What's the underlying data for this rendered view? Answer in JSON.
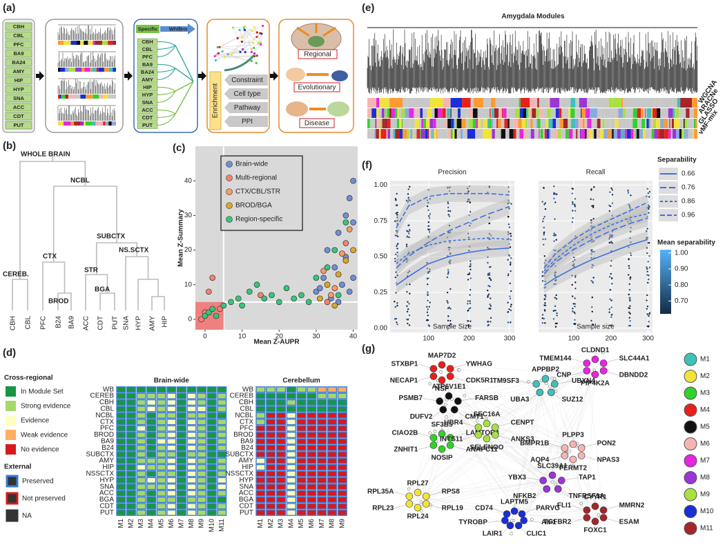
{
  "panel_a": {
    "label": "(a)",
    "regions": [
      "CBH",
      "CBL",
      "PFC",
      "BA9",
      "BA24",
      "AMY",
      "HIP",
      "HYP",
      "SNA",
      "ACC",
      "CDT",
      "PUT"
    ],
    "specific": "Specific",
    "whole_brain": "WhlBrn",
    "enrichment": "Enrichment",
    "enrichment_types": [
      "Constraint",
      "Cell type",
      "Pathway",
      "PPI"
    ],
    "outcomes": [
      "Regional",
      "Evolutionary",
      "Disease"
    ]
  },
  "panel_b": {
    "label": "(b)",
    "nodes": [
      "WHOLE BRAIN",
      "NCBL",
      "SUBCTX",
      "CTX",
      "NS.SCTX",
      "CEREB.",
      "STR",
      "BROD",
      "BGA"
    ],
    "leaves": [
      "CBH",
      "CBL",
      "PFC",
      "B24",
      "BA9",
      "ACC",
      "CDT",
      "PUT",
      "SNA",
      "HYP",
      "AMY",
      "HIP"
    ]
  },
  "chart_data": [
    {
      "type": "scatter",
      "panel": "(c)",
      "x_label": "Mean Z-AUPR",
      "y_label": "Mean Z-Summary",
      "xlim": [
        -2.6,
        41.2
      ],
      "ylim": [
        -3,
        50
      ],
      "xticks": [
        0,
        10,
        20,
        30,
        40
      ],
      "yticks": [
        0,
        10,
        20,
        30,
        40
      ],
      "x_threshold": 5,
      "y_threshold": 5,
      "series": [
        {
          "name": "Brain-wide",
          "color": "#6f8fd6",
          "x": [
            30,
            32,
            33,
            34,
            35,
            36,
            37,
            38,
            38,
            39,
            40,
            40,
            40,
            39,
            36,
            31
          ],
          "values": [
            8,
            12,
            20,
            6,
            15,
            25,
            10,
            30,
            18,
            35,
            40,
            28,
            12,
            8,
            5,
            9
          ]
        },
        {
          "name": "Multi-regional",
          "color": "#f4826f",
          "x": [
            0,
            1,
            2,
            -1,
            4,
            15,
            33,
            38
          ],
          "values": [
            2,
            8,
            12,
            0,
            3,
            7,
            5,
            22
          ]
        },
        {
          "name": "CTX/CBL/STR",
          "color": "#fb9a60",
          "x": [
            32,
            35,
            37,
            39,
            34
          ],
          "values": [
            14,
            9,
            19,
            26,
            7
          ]
        },
        {
          "name": "BROD/BGA",
          "color": "#e0a526",
          "x": [
            33,
            36,
            38,
            40,
            31,
            35
          ],
          "values": [
            10,
            13,
            17,
            20,
            6,
            4
          ]
        },
        {
          "name": "Region-specific",
          "color": "#34c77b",
          "x": [
            0,
            1,
            2,
            3,
            5,
            7,
            9,
            10,
            12,
            14,
            16,
            18,
            20,
            22,
            24,
            26,
            28,
            30,
            33,
            35,
            38,
            36
          ],
          "values": [
            1,
            2,
            3,
            1,
            4,
            5,
            6,
            4,
            8,
            10,
            6,
            7,
            5,
            9,
            6,
            7,
            5,
            12,
            15,
            20,
            28,
            7
          ]
        }
      ]
    },
    {
      "type": "line",
      "panel": "(f)",
      "x": [
        20,
        50,
        100,
        150,
        200,
        250,
        300
      ],
      "xlim": [
        5,
        312
      ],
      "ylim": [
        -0.03,
        1.03
      ],
      "xticks": [
        100,
        200,
        300
      ],
      "yticks": [
        {
          "value": 0,
          "label": "0.00"
        },
        {
          "value": 0.25,
          "label": "0.25"
        },
        {
          "value": 0.5,
          "label": "0.50"
        },
        {
          "value": 0.75,
          "label": "0.75"
        },
        {
          "value": 1,
          "label": "1.00"
        }
      ],
      "color": "#3d6fe0",
      "legend_title": "Separability",
      "facets": [
        {
          "title": "Precision",
          "x_label": "Sample Size",
          "series": [
            {
              "name": "0.66",
              "values": [
                0.3,
                0.36,
                0.45,
                0.5,
                0.53,
                0.55,
                0.56
              ]
            },
            {
              "name": "0.76",
              "values": [
                0.42,
                0.5,
                0.6,
                0.68,
                0.74,
                0.8,
                0.85
              ]
            },
            {
              "name": "0.86",
              "values": [
                0.45,
                0.52,
                0.58,
                0.61,
                0.62,
                0.63,
                0.62
              ]
            },
            {
              "name": "0.96",
              "values": [
                0.7,
                0.85,
                0.92,
                0.94,
                0.94,
                0.94,
                0.93
              ]
            }
          ]
        },
        {
          "title": "Recall",
          "x_label": "Sample size",
          "series": [
            {
              "name": "0.66",
              "values": [
                0.3,
                0.35,
                0.42,
                0.48,
                0.53,
                0.58,
                0.62
              ]
            },
            {
              "name": "0.76",
              "values": [
                0.38,
                0.46,
                0.55,
                0.62,
                0.68,
                0.73,
                0.77
              ]
            },
            {
              "name": "0.86",
              "values": [
                0.4,
                0.48,
                0.58,
                0.66,
                0.72,
                0.77,
                0.8
              ]
            },
            {
              "name": "0.96",
              "values": [
                0.42,
                0.52,
                0.62,
                0.7,
                0.76,
                0.82,
                0.88
              ]
            }
          ]
        }
      ],
      "colorbar_title": "Mean separability",
      "colorbar_lim": [
        0.62,
        1.02
      ],
      "colorbar_ticks": [
        {
          "value": 1,
          "label": "1.00"
        },
        {
          "value": 0.9,
          "label": "0.90"
        },
        {
          "value": 0.8,
          "label": "0.80"
        },
        {
          "value": 0.7,
          "label": "0.70"
        }
      ]
    }
  ],
  "panel_d": {
    "label": "(d)",
    "cross_regional_title": "Cross-regional",
    "levels": [
      {
        "name": "In Module Set",
        "color": "#1a9641"
      },
      {
        "name": "Strong evidence",
        "color": "#a6d96a"
      },
      {
        "name": "Evidence",
        "color": "#ffffbf"
      },
      {
        "name": "Weak evidence",
        "color": "#fdae61"
      },
      {
        "name": "No evidence",
        "color": "#d7191c"
      }
    ],
    "external_title": "External",
    "external": [
      {
        "name": "Preserved",
        "color": "#3b7dd8"
      },
      {
        "name": "Not preserved",
        "color": "#d7191c"
      },
      {
        "name": "NA",
        "color": "#333333"
      }
    ],
    "heatmaps": [
      {
        "title": "Brain-wide",
        "rows": [
          "WB",
          "CEREB",
          "CBH",
          "CBL",
          "NCBL",
          "CTX",
          "PFC",
          "BROD",
          "BA9",
          "B24",
          "SUBCTX",
          "AMY",
          "HIP",
          "NSSCTX",
          "HYP",
          "SNA",
          "ACC",
          "BGA",
          "CDT",
          "PUT"
        ],
        "columns": [
          "M1",
          "M2",
          "M3",
          "M4",
          "M5",
          "M6",
          "M7",
          "M8",
          "M9",
          "M10",
          "M11"
        ],
        "cells": [
          [
            0,
            0,
            0,
            0,
            0,
            0,
            0,
            0,
            0,
            0,
            0
          ],
          [
            0,
            0,
            1,
            1,
            1,
            2,
            0,
            2,
            1,
            0,
            1
          ],
          [
            0,
            0,
            1,
            2,
            1,
            2,
            0,
            2,
            1,
            0,
            1
          ],
          [
            0,
            0,
            1,
            2,
            1,
            2,
            0,
            2,
            2,
            0,
            1
          ],
          [
            0,
            0,
            1,
            0,
            1,
            1,
            0,
            1,
            1,
            0,
            0
          ],
          [
            0,
            0,
            1,
            0,
            1,
            2,
            0,
            2,
            1,
            0,
            1
          ],
          [
            0,
            0,
            2,
            0,
            1,
            2,
            0,
            2,
            1,
            0,
            1
          ],
          [
            0,
            0,
            1,
            0,
            1,
            2,
            0,
            2,
            1,
            0,
            1
          ],
          [
            0,
            0,
            1,
            0,
            2,
            2,
            0,
            2,
            1,
            0,
            1
          ],
          [
            0,
            0,
            1,
            0,
            1,
            2,
            0,
            2,
            1,
            0,
            1
          ],
          [
            0,
            0,
            1,
            0,
            1,
            1,
            0,
            1,
            1,
            0,
            0
          ],
          [
            0,
            0,
            1,
            1,
            1,
            2,
            0,
            2,
            1,
            0,
            1
          ],
          [
            0,
            0,
            2,
            1,
            1,
            2,
            0,
            2,
            1,
            0,
            1
          ],
          [
            0,
            0,
            1,
            0,
            1,
            1,
            0,
            2,
            1,
            0,
            1
          ],
          [
            0,
            0,
            1,
            2,
            1,
            2,
            0,
            2,
            1,
            0,
            2
          ],
          [
            0,
            0,
            1,
            1,
            1,
            2,
            0,
            2,
            1,
            0,
            2
          ],
          [
            0,
            0,
            1,
            0,
            1,
            2,
            0,
            2,
            1,
            0,
            1
          ],
          [
            0,
            0,
            1,
            0,
            1,
            1,
            0,
            1,
            1,
            0,
            0
          ],
          [
            0,
            0,
            1,
            0,
            1,
            2,
            0,
            2,
            1,
            0,
            1
          ],
          [
            0,
            0,
            1,
            0,
            1,
            2,
            0,
            2,
            1,
            0,
            1
          ]
        ]
      },
      {
        "title": "Cerebellum",
        "rows": [
          "WB",
          "CEREB",
          "CBH",
          "CBL",
          "NCBL",
          "CTX",
          "PFC",
          "BROD",
          "BA9",
          "B24",
          "SUBCTX",
          "AMY",
          "HIP",
          "NSSCTX",
          "HYP",
          "SNA",
          "ACC",
          "BGA",
          "CDT",
          "PUT"
        ],
        "columns": [
          "M1",
          "M2",
          "M3",
          "M4",
          "M5",
          "M6",
          "M7",
          "M8",
          "M9"
        ],
        "cells": [
          [
            1,
            1,
            1,
            0,
            1,
            1,
            3,
            3,
            3
          ],
          [
            0,
            0,
            0,
            0,
            0,
            0,
            1,
            1,
            1
          ],
          [
            0,
            0,
            0,
            1,
            0,
            0,
            0,
            0,
            0
          ],
          [
            0,
            0,
            0,
            0,
            0,
            0,
            0,
            0,
            0
          ],
          [
            1,
            4,
            4,
            2,
            4,
            4,
            4,
            4,
            4
          ],
          [
            1,
            4,
            4,
            2,
            4,
            4,
            4,
            4,
            4
          ],
          [
            4,
            4,
            4,
            2,
            4,
            4,
            4,
            4,
            4
          ],
          [
            4,
            4,
            4,
            2,
            4,
            4,
            4,
            4,
            4
          ],
          [
            4,
            4,
            4,
            2,
            4,
            4,
            4,
            4,
            4
          ],
          [
            4,
            4,
            4,
            2,
            4,
            4,
            4,
            4,
            4
          ],
          [
            4,
            4,
            4,
            2,
            4,
            4,
            4,
            4,
            4
          ],
          [
            2,
            4,
            4,
            2,
            4,
            4,
            4,
            4,
            4
          ],
          [
            2,
            4,
            4,
            2,
            4,
            4,
            4,
            4,
            4
          ],
          [
            4,
            4,
            4,
            2,
            4,
            4,
            4,
            4,
            4
          ],
          [
            4,
            4,
            4,
            2,
            4,
            4,
            4,
            4,
            4
          ],
          [
            4,
            4,
            4,
            2,
            4,
            4,
            4,
            4,
            4
          ],
          [
            4,
            4,
            4,
            2,
            4,
            4,
            4,
            4,
            4
          ],
          [
            4,
            4,
            4,
            2,
            4,
            4,
            4,
            4,
            4
          ],
          [
            4,
            4,
            4,
            2,
            4,
            4,
            4,
            4,
            4
          ],
          [
            4,
            4,
            4,
            2,
            4,
            4,
            4,
            4,
            4
          ]
        ]
      }
    ]
  },
  "panel_e": {
    "label": "(e)",
    "title": "Amygdala Modules",
    "tracks": [
      "WGCNA",
      "ARACNe",
      "GLASSO",
      "vMF-mix"
    ]
  },
  "panel_g": {
    "label": "(g)",
    "modules": [
      {
        "name": "M1",
        "color": "#40c0b8",
        "genes": [
          "APPBP2",
          "UBXN4",
          "SUZ12",
          "UBA3",
          "TM9SF3"
        ]
      },
      {
        "name": "M2",
        "color": "#f2e33a",
        "genes": [
          "RPL27",
          "RPS8",
          "RPL19",
          "RPL24",
          "RPL23",
          "RPL35A"
        ]
      },
      {
        "name": "M3",
        "color": "#33d12b",
        "genes": [
          "SF3B5",
          "LAMTOR4",
          "ANAPC11",
          "NOSIP",
          "ZNHIT1",
          "CIAO2B"
        ]
      },
      {
        "name": "M4",
        "color": "#e8201c",
        "genes": [
          "MAP7D2",
          "YWHAG",
          "CDK5R1",
          "NSF",
          "NECAP1",
          "STXBP1"
        ]
      },
      {
        "name": "M5",
        "color": "#111111",
        "genes": [
          "ATP6V1E1",
          "FARSB",
          "CMT1",
          "DUFV2",
          "PSMB7"
        ]
      },
      {
        "name": "M6",
        "color": "#f5b5b5",
        "genes": [
          "PLPP3",
          "PON2",
          "NPAS3",
          "FERMT2",
          "AQP4",
          "BMPR1B"
        ]
      },
      {
        "name": "M7",
        "color": "#e825e0",
        "genes": [
          "CLDND1",
          "SLC44A1",
          "DBNDD2",
          "PIP4K2A",
          "CNP",
          "TMEM144"
        ]
      },
      {
        "name": "M8",
        "color": "#9a35d6",
        "genes": [
          "SLC39A1",
          "TAP1",
          "TNFRSF1A",
          "NFKB2",
          "YBX3"
        ]
      },
      {
        "name": "M9",
        "color": "#a8e040",
        "genes": [
          "SEC16A",
          "CENPT",
          "ANKS3",
          "SELENOO",
          "INTS11",
          "UBR4"
        ]
      },
      {
        "name": "M10",
        "color": "#1a2fd8",
        "genes": [
          "LAPTM5",
          "PARVG",
          "AIF1",
          "CLIC1",
          "LAIR1",
          "TYROBP",
          "CD74"
        ]
      },
      {
        "name": "M11",
        "color": "#a5262a",
        "genes": [
          "CYYR1",
          "MMRN2",
          "ESAM",
          "FOXC1",
          "TGFBR2",
          "FLI1"
        ]
      }
    ]
  }
}
